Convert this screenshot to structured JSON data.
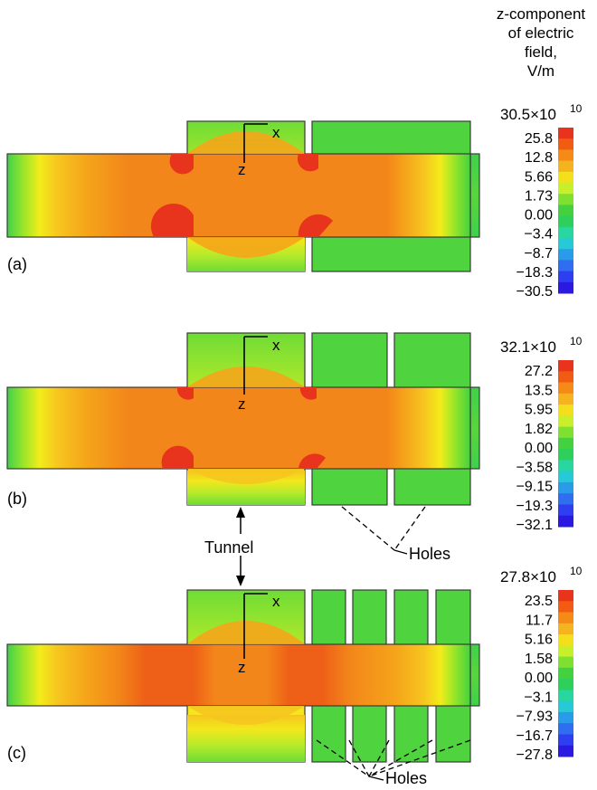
{
  "colorbar_title": [
    "z-component",
    "of electric",
    "field,",
    "V/m"
  ],
  "panels": [
    {
      "label": "(a)",
      "colorbar_top": "30.5×10",
      "exponent": "10",
      "ticks": [
        "25.8",
        "12.8",
        "5.66",
        "1.73",
        "0.00",
        "−3.4",
        "−8.7",
        "−18.3",
        "−30.5"
      ]
    },
    {
      "label": "(b)",
      "colorbar_top": "32.1×10",
      "exponent": "10",
      "ticks": [
        "27.2",
        "13.5",
        "5.95",
        "1.82",
        "0.00",
        "−3.58",
        "−9.15",
        "−19.3",
        "−32.1"
      ]
    },
    {
      "label": "(c)",
      "colorbar_top": "27.8×10",
      "exponent": "10",
      "ticks": [
        "23.5",
        "11.7",
        "5.16",
        "1.58",
        "0.00",
        "−3.1",
        "−7.93",
        "−16.7",
        "−27.8"
      ]
    }
  ],
  "axis_labels": {
    "x": "x",
    "z": "z"
  },
  "annotations": {
    "tunnel": "Tunnel",
    "holes": "Holes"
  },
  "colormap": [
    "#e8341c",
    "#f25b12",
    "#f58a17",
    "#f5b41f",
    "#f3df1c",
    "#c9ee2a",
    "#7fe02f",
    "#44d13f",
    "#2ecf5b",
    "#27d6a0",
    "#27c9d6",
    "#2a9bea",
    "#2f6ef0",
    "#2e3ff2",
    "#2a19e0"
  ],
  "colors": {
    "outline": "#3a3a3a",
    "background": "#ffffff"
  }
}
